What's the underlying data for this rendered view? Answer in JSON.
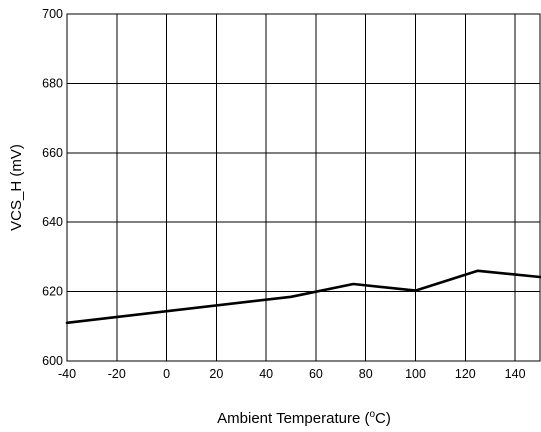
{
  "chart_data": {
    "type": "line",
    "xlabel": "Ambient Temperature (",
    "xlabel_super": "o",
    "xlabel_suffix": "C)",
    "ylabel": "VCS_H (mV)",
    "xlim": [
      -40,
      150
    ],
    "ylim": [
      600,
      700
    ],
    "x_ticks": [
      -40,
      -20,
      0,
      20,
      40,
      60,
      80,
      100,
      120,
      140
    ],
    "y_ticks": [
      600,
      620,
      640,
      660,
      680,
      700
    ],
    "grid": true,
    "series": [
      {
        "x": [
          -40,
          50,
          75,
          100,
          125,
          150
        ],
        "y": [
          611,
          618.5,
          622.2,
          620.3,
          626,
          624.2
        ],
        "color": "#000000"
      }
    ]
  }
}
